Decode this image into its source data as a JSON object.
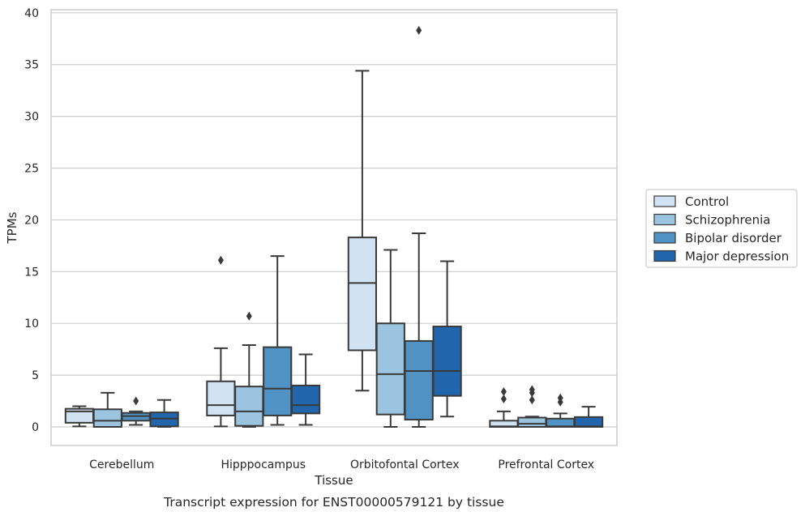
{
  "chart_data": {
    "type": "box",
    "xlabel": "Tissue",
    "ylabel": "TPMs",
    "caption": "Transcript expression for ENST00000579121 by tissue",
    "ylim": [
      -1.8,
      40.3
    ],
    "yticks": [
      0,
      5,
      10,
      15,
      20,
      25,
      30,
      35,
      40
    ],
    "grid": "horizontal",
    "legend_position": "right",
    "categories": [
      "Cerebellum",
      "Hipppocampus",
      "Orbitofontal Cortex",
      "Prefrontal Cortex"
    ],
    "series": [
      {
        "name": "Control",
        "color": "#d1e2f2",
        "boxes": [
          {
            "whislo": 0.05,
            "q1": 0.4,
            "med": 1.5,
            "q3": 1.75,
            "whishi": 2.0,
            "fliers": []
          },
          {
            "whislo": 0.05,
            "q1": 1.1,
            "med": 2.1,
            "q3": 4.4,
            "whishi": 7.6,
            "fliers": [
              16.1
            ]
          },
          {
            "whislo": 3.5,
            "q1": 7.4,
            "med": 13.9,
            "q3": 18.3,
            "whishi": 34.4,
            "fliers": []
          },
          {
            "whislo": 0.0,
            "q1": 0.0,
            "med": 0.05,
            "q3": 0.6,
            "whishi": 1.5,
            "fliers": [
              2.7,
              3.4
            ]
          }
        ]
      },
      {
        "name": "Schizophrenia",
        "color": "#9ac4e0",
        "boxes": [
          {
            "whislo": 0.0,
            "q1": 0.0,
            "med": 0.6,
            "q3": 1.7,
            "whishi": 3.3,
            "fliers": []
          },
          {
            "whislo": 0.0,
            "q1": 0.1,
            "med": 1.5,
            "q3": 3.9,
            "whishi": 7.9,
            "fliers": [
              10.7
            ]
          },
          {
            "whislo": 0.0,
            "q1": 1.2,
            "med": 5.1,
            "q3": 10.0,
            "whishi": 17.1,
            "fliers": []
          },
          {
            "whislo": 0.0,
            "q1": 0.0,
            "med": 0.3,
            "q3": 0.9,
            "whishi": 1.0,
            "fliers": [
              2.6,
              3.3,
              3.6
            ]
          }
        ]
      },
      {
        "name": "Bipolar disorder",
        "color": "#4f92c3",
        "boxes": [
          {
            "whislo": 0.2,
            "q1": 0.6,
            "med": 1.05,
            "q3": 1.35,
            "whishi": 1.5,
            "fliers": [
              2.5
            ]
          },
          {
            "whislo": 0.2,
            "q1": 1.1,
            "med": 3.7,
            "q3": 7.7,
            "whishi": 16.5,
            "fliers": []
          },
          {
            "whislo": 0.0,
            "q1": 0.7,
            "med": 5.4,
            "q3": 8.3,
            "whishi": 18.7,
            "fliers": [
              38.3
            ]
          },
          {
            "whislo": 0.0,
            "q1": 0.0,
            "med": 0.05,
            "q3": 0.8,
            "whishi": 1.3,
            "fliers": [
              2.4,
              2.8
            ]
          }
        ]
      },
      {
        "name": "Major depression",
        "color": "#2166ac",
        "boxes": [
          {
            "whislo": 0.0,
            "q1": 0.05,
            "med": 0.8,
            "q3": 1.4,
            "whishi": 2.6,
            "fliers": []
          },
          {
            "whislo": 0.2,
            "q1": 1.3,
            "med": 2.1,
            "q3": 4.0,
            "whishi": 7.0,
            "fliers": []
          },
          {
            "whislo": 1.0,
            "q1": 3.0,
            "med": 5.4,
            "q3": 9.7,
            "whishi": 16.0,
            "fliers": []
          },
          {
            "whislo": 0.0,
            "q1": 0.0,
            "med": 0.05,
            "q3": 0.95,
            "whishi": 1.95,
            "fliers": []
          }
        ]
      }
    ]
  },
  "colors": {
    "grid": "#cccccc",
    "frame": "#cccccc",
    "box_edge": "#3a3a3a"
  }
}
